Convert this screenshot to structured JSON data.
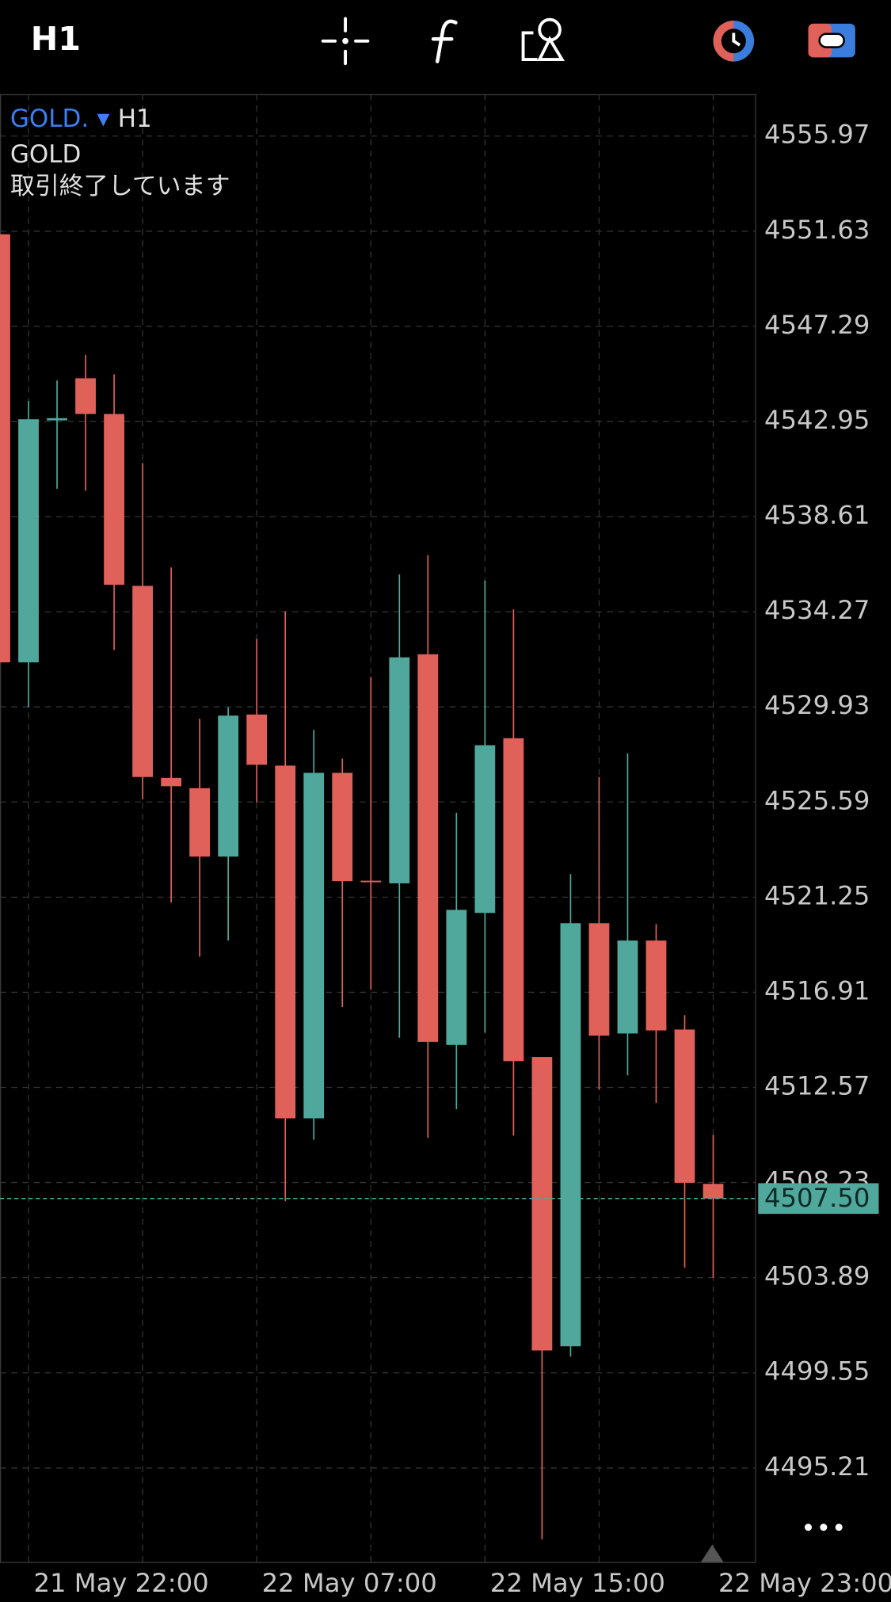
{
  "toolbar": {
    "timeframe": "H1"
  },
  "chart_data": {
    "type": "candlestick",
    "symbol": "GOLD.",
    "timeframe": "H1",
    "name": "GOLD",
    "status": "取引終了しています",
    "categories": [
      null,
      "21 May 22:00",
      null,
      null,
      null,
      null,
      null,
      null,
      null,
      "22 May 07:00",
      null,
      null,
      null,
      null,
      null,
      null,
      null,
      "22 May 15:00",
      null,
      null,
      null,
      null,
      null,
      null,
      null,
      "22 May 23:00"
    ],
    "open": [
      4551.49,
      4531.96,
      4543.0,
      4544.92,
      4543.29,
      4535.45,
      4526.69,
      4526.22,
      4523.1,
      4529.58,
      4527.25,
      4511.16,
      4526.92,
      4522.0,
      4521.88,
      4532.33,
      4514.51,
      4520.53,
      4528.5,
      4513.96,
      4500.76,
      4520.06,
      4515.03,
      4519.27,
      4515.21,
      4508.17
    ],
    "high": [
      4551.49,
      4543.89,
      4544.82,
      4545.99,
      4545.1,
      4541.05,
      4536.29,
      4529.39,
      4529.9,
      4533.03,
      4534.29,
      4528.88,
      4527.57,
      4531.3,
      4535.97,
      4536.85,
      4525.1,
      4535.69,
      4534.38,
      4513.96,
      4522.3,
      4526.73,
      4527.81,
      4520.02,
      4515.87,
      4510.41
    ],
    "low": [
      4531.96,
      4529.9,
      4539.88,
      4539.79,
      4532.52,
      4525.71,
      4521.0,
      4518.53,
      4519.27,
      4525.57,
      4507.38,
      4510.18,
      4516.24,
      4517.03,
      4514.84,
      4510.27,
      4511.58,
      4515.07,
      4510.37,
      4491.95,
      4500.29,
      4512.46,
      4513.12,
      4511.86,
      4504.35,
      4503.88
    ],
    "close": [
      4531.96,
      4543.05,
      4543.1,
      4543.29,
      4535.5,
      4526.73,
      4526.31,
      4523.1,
      4529.53,
      4527.29,
      4511.16,
      4526.92,
      4521.98,
      4521.95,
      4532.19,
      4514.65,
      4520.67,
      4528.18,
      4513.77,
      4500.57,
      4520.06,
      4514.93,
      4519.27,
      4515.17,
      4508.22,
      4507.5
    ],
    "up_color": "#50a89c",
    "down_color": "#e0605a",
    "ylim": [
      4490.92,
      4557.88
    ],
    "yticks": [
      4555.97,
      4551.63,
      4547.29,
      4542.95,
      4538.61,
      4534.27,
      4529.93,
      4525.59,
      4521.25,
      4516.91,
      4512.57,
      4508.23,
      4503.89,
      4499.55,
      4495.21
    ],
    "current_price": {
      "value": 4507.5,
      "label": "4507.50"
    },
    "grid": true
  }
}
